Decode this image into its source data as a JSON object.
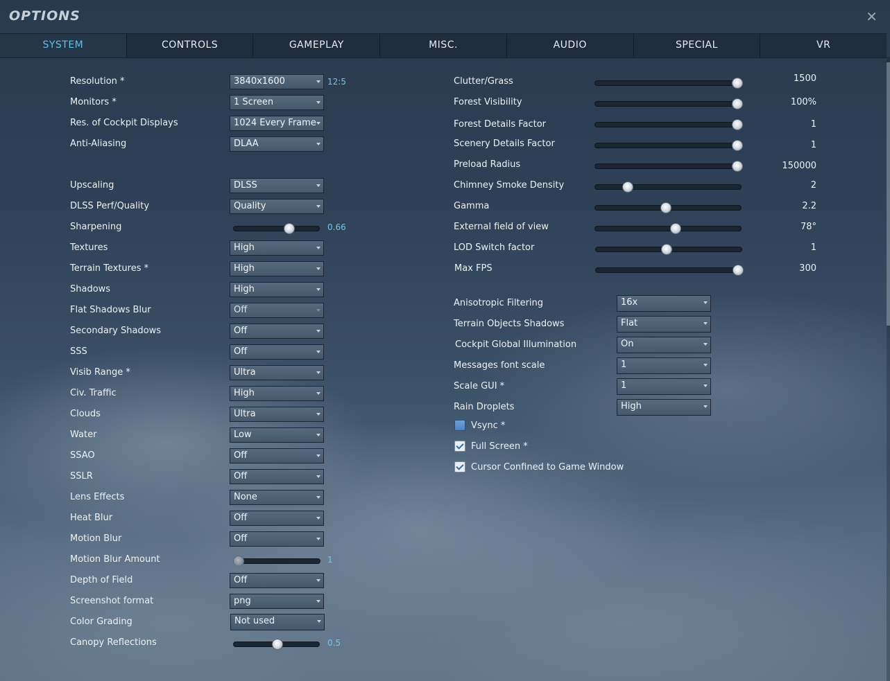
{
  "window": {
    "title": "OPTIONS"
  },
  "tabs": [
    "SYSTEM",
    "CONTROLS",
    "GAMEPLAY",
    "MISC.",
    "AUDIO",
    "SPECIAL",
    "VR"
  ],
  "left": {
    "resolution": {
      "label": "Resolution *",
      "value": "3840x1600",
      "aspect": "12:5"
    },
    "monitors": {
      "label": "Monitors *",
      "value": "1 Screen"
    },
    "cockpit_res": {
      "label": "Res. of Cockpit Displays",
      "value": "1024 Every Frame"
    },
    "anti_aliasing": {
      "label": "Anti-Aliasing",
      "value": "DLAA"
    },
    "upscaling": {
      "label": "Upscaling",
      "value": "DLSS"
    },
    "dlss_quality": {
      "label": "DLSS Perf/Quality",
      "value": "Quality"
    },
    "sharpening": {
      "label": "Sharpening",
      "value": "0.66",
      "level": 0.66
    },
    "textures": {
      "label": "Textures",
      "value": "High"
    },
    "terrain_textures": {
      "label": "Terrain Textures *",
      "value": "High"
    },
    "shadows": {
      "label": "Shadows",
      "value": "High"
    },
    "flat_shadows_blur": {
      "label": "Flat Shadows Blur",
      "value": "Off"
    },
    "secondary_shadows": {
      "label": "Secondary Shadows",
      "value": "Off"
    },
    "sss": {
      "label": "SSS",
      "value": "Off"
    },
    "visib_range": {
      "label": "Visib Range *",
      "value": "Ultra"
    },
    "civ_traffic": {
      "label": "Civ. Traffic",
      "value": "High"
    },
    "clouds": {
      "label": "Clouds",
      "value": "Ultra"
    },
    "water": {
      "label": "Water",
      "value": "Low"
    },
    "ssao": {
      "label": "SSAO",
      "value": "Off"
    },
    "sslr": {
      "label": "SSLR",
      "value": "Off"
    },
    "lens_effects": {
      "label": "Lens Effects",
      "value": "None"
    },
    "heat_blur": {
      "label": "Heat Blur",
      "value": "Off"
    },
    "motion_blur": {
      "label": "Motion Blur",
      "value": "Off"
    },
    "motion_blur_amount": {
      "label": "Motion Blur Amount",
      "value": "1",
      "level": 0.0
    },
    "depth_of_field": {
      "label": "Depth of Field",
      "value": "Off"
    },
    "screenshot_format": {
      "label": "Screenshot format",
      "value": "png"
    },
    "color_grading": {
      "label": "Color Grading",
      "value": "Not used"
    },
    "canopy_reflections": {
      "label": "Canopy Reflections",
      "value": "0.5",
      "level": 0.5
    }
  },
  "right": {
    "clutter": {
      "label": "Clutter/Grass",
      "value": "1500",
      "level": 1.0
    },
    "forest_visibility": {
      "label": "Forest Visibility",
      "value": "100%",
      "level": 1.0
    },
    "forest_details": {
      "label": "Forest Details Factor",
      "value": "1",
      "level": 1.0
    },
    "scenery_details": {
      "label": "Scenery Details Factor",
      "value": "1",
      "level": 1.0
    },
    "preload_radius": {
      "label": "Preload Radius",
      "value": "150000",
      "level": 1.0
    },
    "chimney_smoke": {
      "label": "Chimney Smoke Density",
      "value": "2",
      "level": 0.2
    },
    "gamma": {
      "label": "Gamma",
      "value": "2.2",
      "level": 0.48
    },
    "fov": {
      "label": "External field of view",
      "value": "78°",
      "level": 0.55
    },
    "lod_switch": {
      "label": "LOD Switch factor",
      "value": "1",
      "level": 0.48
    },
    "max_fps": {
      "label": "Max FPS",
      "value": "300",
      "level": 1.0
    },
    "anisotropic": {
      "label": "Anisotropic Filtering",
      "value": "16x"
    },
    "terrain_obj_shadows": {
      "label": "Terrain Objects Shadows",
      "value": "Flat"
    },
    "cockpit_gi": {
      "label": "Cockpit Global Illumination",
      "value": "On"
    },
    "msg_font_scale": {
      "label": "Messages font scale",
      "value": "1"
    },
    "scale_gui": {
      "label": "Scale GUI *",
      "value": "1"
    },
    "rain_droplets": {
      "label": "Rain Droplets",
      "value": "High"
    },
    "vsync": {
      "label": "Vsync *",
      "checked": false
    },
    "fullscreen": {
      "label": "Full Screen *",
      "checked": true
    },
    "cursor_confined": {
      "label": "Cursor Confined to Game Window",
      "checked": true
    }
  },
  "colors": {
    "accent": "#5bc4f0",
    "value_blue": "#6ec6ef"
  }
}
